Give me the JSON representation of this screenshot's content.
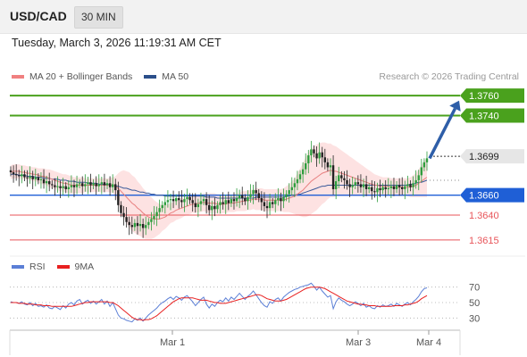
{
  "header": {
    "symbol": "USD/CAD",
    "timeframe": "30 MIN",
    "datetime": "Tuesday, March 3, 2026 11:19:31 AM CET",
    "copyright": "Research © 2026 Trading Central"
  },
  "legend": {
    "main": [
      {
        "label": "MA 20 + Bollinger Bands",
        "color": "#f08080"
      },
      {
        "label": "MA 50",
        "color": "#2b4f8a"
      }
    ],
    "rsi": [
      {
        "label": "RSI",
        "color": "#5b7fd6"
      },
      {
        "label": "9MA",
        "color": "#e82020"
      }
    ]
  },
  "colors": {
    "up": "#2e9e3e",
    "down": "#222222",
    "resistance": "#4aa11d",
    "pivot": "#1f5fd6",
    "support": "#e8555a",
    "arrow": "#2e5ea8",
    "bollinger_fill": "#fde2e2",
    "ma20": "#e88080",
    "ma50": "#3a5a9a"
  },
  "chart_data": [
    {
      "type": "candlestick",
      "title": "USD/CAD 30 MIN",
      "x_ticks": [
        "Mar 1",
        "Mar 3",
        "Mar 4"
      ],
      "ylim": [
        1.3605,
        1.377
      ],
      "last_price": 1.3699,
      "levels": [
        {
          "value": 1.376,
          "label": "1.3760",
          "kind": "resistance"
        },
        {
          "value": 1.374,
          "label": "1.3740",
          "kind": "resistance"
        },
        {
          "value": 1.366,
          "label": "1.3660",
          "kind": "pivot"
        },
        {
          "value": 1.364,
          "label": "1.3640",
          "kind": "support"
        },
        {
          "value": 1.3615,
          "label": "1.3615",
          "kind": "support"
        }
      ],
      "projection": {
        "from": 1.3697,
        "to": 1.3755,
        "direction": "up"
      },
      "close": [
        1.3683,
        1.3681,
        1.368,
        1.3679,
        1.3681,
        1.3678,
        1.3677,
        1.3679,
        1.3676,
        1.3678,
        1.3675,
        1.3676,
        1.3672,
        1.3674,
        1.3671,
        1.367,
        1.3668,
        1.3669,
        1.3667,
        1.3669,
        1.3666,
        1.3668,
        1.367,
        1.3668,
        1.3671,
        1.3672,
        1.3669,
        1.3671,
        1.3673,
        1.367,
        1.3672,
        1.3669,
        1.3671,
        1.3673,
        1.367,
        1.3672,
        1.3668,
        1.3671,
        1.3665,
        1.365,
        1.3642,
        1.3638,
        1.3633,
        1.363,
        1.3628,
        1.3632,
        1.3629,
        1.3631,
        1.3627,
        1.363,
        1.3633,
        1.3636,
        1.3639,
        1.3643,
        1.3647,
        1.365,
        1.3653,
        1.3655,
        1.3656,
        1.3654,
        1.3657,
        1.3655,
        1.3653,
        1.3656,
        1.3658,
        1.3655,
        1.3652,
        1.3648,
        1.3651,
        1.3654,
        1.3656,
        1.365,
        1.3645,
        1.3649,
        1.3646,
        1.365,
        1.3653,
        1.3651,
        1.3655,
        1.3652,
        1.3656,
        1.3654,
        1.3657,
        1.366,
        1.3657,
        1.3654,
        1.3658,
        1.3661,
        1.3665,
        1.3662,
        1.3657,
        1.3653,
        1.3649,
        1.3647,
        1.3653,
        1.3651,
        1.3655,
        1.3657,
        1.3654,
        1.3658,
        1.3661,
        1.3665,
        1.3668,
        1.3672,
        1.3676,
        1.3681,
        1.3686,
        1.3692,
        1.37,
        1.3706,
        1.3702,
        1.3697,
        1.3703,
        1.3698,
        1.3693,
        1.3688,
        1.369,
        1.3666,
        1.3674,
        1.368,
        1.3677,
        1.3675,
        1.3671,
        1.3668,
        1.367,
        1.3673,
        1.3671,
        1.3668,
        1.3671,
        1.3666,
        1.3668,
        1.3664,
        1.3663,
        1.3667,
        1.3665,
        1.3668,
        1.3666,
        1.3667,
        1.3669,
        1.3666,
        1.367,
        1.3668,
        1.3666,
        1.3669,
        1.3671,
        1.3668,
        1.3672,
        1.3675,
        1.368,
        1.3688,
        1.3693,
        1.3697
      ],
      "ma20": [
        1.3683,
        1.3684,
        1.3684,
        1.3684,
        1.3683,
        1.3683,
        1.3682,
        1.3682,
        1.3681,
        1.3681,
        1.368,
        1.3679,
        1.3679,
        1.3678,
        1.3677,
        1.3676,
        1.3675,
        1.3674,
        1.3673,
        1.3672,
        1.3672,
        1.3671,
        1.367,
        1.367,
        1.367,
        1.367,
        1.367,
        1.367,
        1.367,
        1.367,
        1.367,
        1.367,
        1.367,
        1.367,
        1.367,
        1.367,
        1.367,
        1.367,
        1.3669,
        1.3667,
        1.3664,
        1.3661,
        1.3658,
        1.3655,
        1.3652,
        1.365,
        1.3647,
        1.3645,
        1.3642,
        1.364,
        1.3638,
        1.3637,
        1.3636,
        1.3636,
        1.3636,
        1.3637,
        1.3638,
        1.364,
        1.3642,
        1.3643,
        1.3645,
        1.3646,
        1.3647,
        1.3648,
        1.3649,
        1.365,
        1.3651,
        1.3651,
        1.3652,
        1.3652,
        1.3653,
        1.3652,
        1.3652,
        1.3652,
        1.3652,
        1.3651,
        1.3651,
        1.3651,
        1.3651,
        1.3652,
        1.3652,
        1.3652,
        1.3653,
        1.3653,
        1.3654,
        1.3654,
        1.3655,
        1.3655,
        1.3656,
        1.3656,
        1.3656,
        1.3656,
        1.3655,
        1.3655,
        1.3655,
        1.3655,
        1.3655,
        1.3655,
        1.3655,
        1.3655,
        1.3656,
        1.3657,
        1.3658,
        1.3659,
        1.3661,
        1.3663,
        1.3665,
        1.3668,
        1.3671,
        1.3674,
        1.3676,
        1.3678,
        1.368,
        1.3682,
        1.3683,
        1.3684,
        1.3685,
        1.3684,
        1.3684,
        1.3683,
        1.3682,
        1.3681,
        1.368,
        1.3679,
        1.3678,
        1.3677,
        1.3676,
        1.3675,
        1.3674,
        1.3673,
        1.3672,
        1.3671,
        1.367,
        1.367,
        1.3669,
        1.3669,
        1.3669,
        1.3669,
        1.3668,
        1.3668,
        1.3668,
        1.3668,
        1.3668,
        1.3668,
        1.3668,
        1.3668,
        1.3669,
        1.367,
        1.3672,
        1.3674,
        1.3676,
        1.3678
      ],
      "ma50": [
        1.3681,
        1.3681,
        1.3681,
        1.368,
        1.368,
        1.368,
        1.3679,
        1.3679,
        1.3679,
        1.3678,
        1.3678,
        1.3678,
        1.3677,
        1.3677,
        1.3677,
        1.3676,
        1.3676,
        1.3676,
        1.3675,
        1.3675,
        1.3675,
        1.3674,
        1.3674,
        1.3674,
        1.3673,
        1.3673,
        1.3673,
        1.3673,
        1.3672,
        1.3672,
        1.3672,
        1.3672,
        1.3671,
        1.3671,
        1.3671,
        1.3671,
        1.367,
        1.367,
        1.3669,
        1.3669,
        1.3668,
        1.3667,
        1.3667,
        1.3666,
        1.3665,
        1.3665,
        1.3664,
        1.3663,
        1.3663,
        1.3662,
        1.3662,
        1.3661,
        1.3661,
        1.366,
        1.366,
        1.366,
        1.3659,
        1.3659,
        1.3659,
        1.3659,
        1.3659,
        1.3659,
        1.3659,
        1.3659,
        1.3659,
        1.3659,
        1.3659,
        1.3659,
        1.3659,
        1.3659,
        1.3659,
        1.3658,
        1.3658,
        1.3658,
        1.3658,
        1.3657,
        1.3657,
        1.3657,
        1.3657,
        1.3657,
        1.3657,
        1.3657,
        1.3657,
        1.3657,
        1.3657,
        1.3657,
        1.3657,
        1.3657,
        1.3657,
        1.3658,
        1.3658,
        1.3658,
        1.3658,
        1.3658,
        1.3658,
        1.3658,
        1.3658,
        1.3658,
        1.3658,
        1.3658,
        1.3659,
        1.3659,
        1.366,
        1.366,
        1.3661,
        1.3661,
        1.3662,
        1.3663,
        1.3664,
        1.3665,
        1.3666,
        1.3667,
        1.3668,
        1.3669,
        1.3669,
        1.367,
        1.367,
        1.367,
        1.367,
        1.367,
        1.367,
        1.367,
        1.367,
        1.367,
        1.367,
        1.367,
        1.367,
        1.367,
        1.367,
        1.367,
        1.367,
        1.367,
        1.367,
        1.367,
        1.367,
        1.367,
        1.367,
        1.367,
        1.367,
        1.367,
        1.367,
        1.367,
        1.367,
        1.367,
        1.367,
        1.3671,
        1.3671,
        1.3672,
        1.3673,
        1.3673,
        1.3674,
        1.3675
      ],
      "band_width": [
        0.0007,
        0.0007,
        0.0007,
        0.0007,
        0.0007,
        0.0007,
        0.0007,
        0.0007,
        0.0007,
        0.0007,
        0.0007,
        0.0008,
        0.0008,
        0.0008,
        0.0009,
        0.0009,
        0.0009,
        0.0009,
        0.0009,
        0.0009,
        0.0009,
        0.0009,
        0.0009,
        0.0008,
        0.0008,
        0.0008,
        0.0008,
        0.0007,
        0.0007,
        0.0007,
        0.0007,
        0.0007,
        0.0007,
        0.0007,
        0.0007,
        0.0007,
        0.0007,
        0.0008,
        0.001,
        0.0015,
        0.002,
        0.0024,
        0.0026,
        0.0028,
        0.0028,
        0.0028,
        0.0027,
        0.0026,
        0.0025,
        0.0024,
        0.0022,
        0.0021,
        0.0019,
        0.0017,
        0.0015,
        0.0013,
        0.0012,
        0.0011,
        0.001,
        0.001,
        0.001,
        0.001,
        0.001,
        0.0009,
        0.0009,
        0.0009,
        0.0009,
        0.0009,
        0.0009,
        0.0009,
        0.0009,
        0.0009,
        0.001,
        0.001,
        0.001,
        0.001,
        0.001,
        0.0009,
        0.0009,
        0.0009,
        0.0009,
        0.0009,
        0.0009,
        0.0009,
        0.001,
        0.001,
        0.001,
        0.001,
        0.001,
        0.0011,
        0.0011,
        0.0011,
        0.0011,
        0.0011,
        0.0011,
        0.0011,
        0.0011,
        0.0011,
        0.0011,
        0.0012,
        0.0013,
        0.0014,
        0.0016,
        0.0018,
        0.0021,
        0.0024,
        0.0027,
        0.003,
        0.0032,
        0.0033,
        0.0033,
        0.0033,
        0.0032,
        0.0031,
        0.003,
        0.0028,
        0.0027,
        0.0026,
        0.0025,
        0.0024,
        0.0023,
        0.0022,
        0.0021,
        0.002,
        0.0019,
        0.0018,
        0.0017,
        0.0016,
        0.0015,
        0.0014,
        0.0013,
        0.0012,
        0.0011,
        0.001,
        0.001,
        0.0009,
        0.0009,
        0.0009,
        0.0009,
        0.0009,
        0.0009,
        0.0009,
        0.0009,
        0.0009,
        0.0009,
        0.001,
        0.0011,
        0.0012,
        0.0014,
        0.0016,
        0.0018,
        0.002
      ]
    },
    {
      "type": "line",
      "title": "RSI",
      "ylim": [
        20,
        80
      ],
      "y_ticks": [
        70,
        50,
        30
      ],
      "rsi": [
        51,
        50,
        50,
        49,
        51,
        48,
        47,
        50,
        46,
        49,
        45,
        46,
        44,
        47,
        43,
        42,
        45,
        43,
        41,
        46,
        43,
        48,
        50,
        47,
        52,
        54,
        48,
        51,
        53,
        49,
        52,
        48,
        51,
        54,
        48,
        52,
        45,
        50,
        42,
        34,
        30,
        29,
        27,
        26,
        25,
        29,
        27,
        30,
        26,
        30,
        34,
        37,
        40,
        43,
        47,
        50,
        52,
        55,
        57,
        54,
        58,
        56,
        53,
        57,
        59,
        55,
        51,
        46,
        50,
        54,
        57,
        48,
        43,
        48,
        45,
        50,
        53,
        51,
        56,
        52,
        57,
        54,
        58,
        62,
        58,
        54,
        58,
        61,
        65,
        60,
        55,
        50,
        46,
        44,
        51,
        49,
        54,
        56,
        52,
        57,
        60,
        63,
        65,
        67,
        68,
        70,
        71,
        72,
        73,
        75,
        71,
        66,
        70,
        65,
        61,
        57,
        59,
        42,
        51,
        56,
        53,
        51,
        48,
        46,
        48,
        51,
        49,
        46,
        49,
        44,
        46,
        43,
        42,
        46,
        44,
        47,
        45,
        46,
        48,
        45,
        49,
        47,
        45,
        48,
        50,
        47,
        51,
        54,
        58,
        64,
        68,
        69
      ],
      "ma9": [
        50,
        50,
        50,
        49,
        49,
        49,
        48,
        48,
        48,
        47,
        47,
        47,
        46,
        46,
        46,
        45,
        45,
        45,
        45,
        45,
        45,
        45,
        45,
        46,
        47,
        48,
        49,
        50,
        50,
        51,
        51,
        51,
        51,
        51,
        51,
        51,
        50,
        50,
        48,
        46,
        43,
        40,
        37,
        34,
        31,
        29,
        28,
        28,
        27,
        28,
        28,
        29,
        31,
        33,
        36,
        39,
        42,
        45,
        48,
        51,
        53,
        55,
        56,
        56,
        56,
        56,
        56,
        55,
        54,
        53,
        53,
        53,
        52,
        51,
        50,
        50,
        49,
        49,
        49,
        50,
        51,
        52,
        53,
        54,
        55,
        56,
        57,
        58,
        59,
        60,
        60,
        59,
        57,
        55,
        54,
        53,
        52,
        52,
        52,
        53,
        54,
        56,
        58,
        60,
        62,
        64,
        66,
        68,
        69,
        70,
        70,
        70,
        70,
        69,
        68,
        66,
        64,
        62,
        60,
        58,
        56,
        54,
        52,
        51,
        50,
        49,
        48,
        48,
        47,
        47,
        46,
        46,
        46,
        45,
        45,
        45,
        45,
        45,
        45,
        46,
        46,
        46,
        46,
        47,
        47,
        48,
        49,
        50,
        52,
        55,
        57,
        59
      ]
    }
  ]
}
